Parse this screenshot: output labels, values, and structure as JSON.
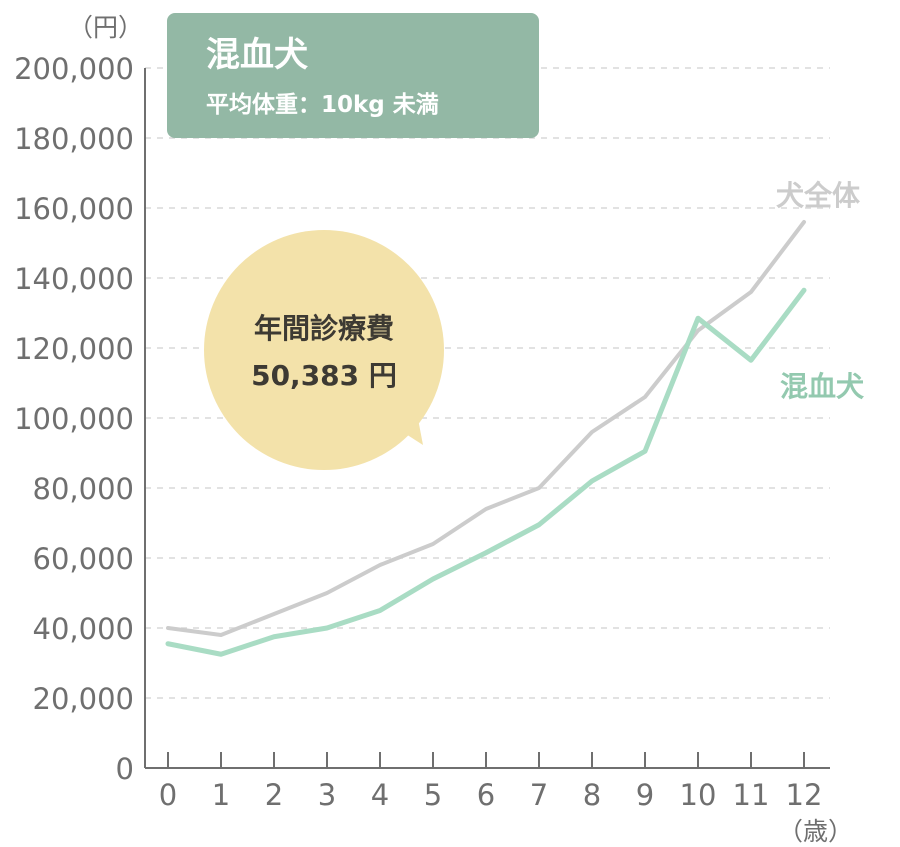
{
  "chart_data": {
    "type": "line",
    "title": "混血犬",
    "subtitle": "平均体重：10kg 未満",
    "y_unit": "（円）",
    "x_unit": "（歳）",
    "x": [
      0,
      1,
      2,
      3,
      4,
      5,
      6,
      7,
      8,
      9,
      10,
      11,
      12
    ],
    "y_ticks": [
      "0",
      "20,000",
      "40,000",
      "60,000",
      "80,000",
      "100,000",
      "120,000",
      "140,000",
      "160,000",
      "180,000",
      "200,000"
    ],
    "ylim": [
      0,
      200000
    ],
    "grid": true,
    "series": [
      {
        "name": "犬全体",
        "color": "#cccccc",
        "values": [
          40000,
          38000,
          44000,
          50000,
          58000,
          64000,
          74000,
          80000,
          96000,
          106000,
          125000,
          136000,
          156000
        ]
      },
      {
        "name": "混血犬",
        "color": "#a9dcc4",
        "values": [
          35500,
          32500,
          37500,
          40000,
          45000,
          54000,
          61500,
          69500,
          82000,
          90500,
          128500,
          116500,
          136500
        ]
      }
    ],
    "annotation": {
      "label": "年間診療費",
      "value": "50,383 円"
    },
    "colors": {
      "title_box": "#93b8a5",
      "bubble": "#f3e2aa",
      "axis": "#6f6f6f",
      "grid": "#d9d9d9"
    }
  }
}
